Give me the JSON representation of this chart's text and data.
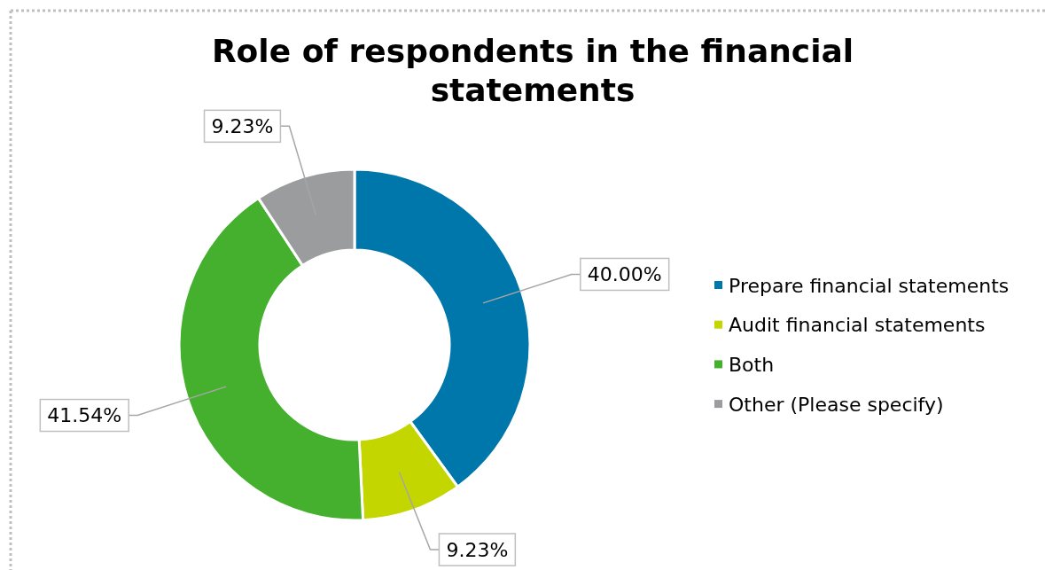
{
  "chart_data": {
    "type": "donut",
    "title": "Role of respondents in the financial statements",
    "categories": [
      "Prepare financial statements",
      "Audit financial statements",
      "Both",
      "Other (Please specify)"
    ],
    "values": [
      40.0,
      9.23,
      41.54,
      9.23
    ],
    "colors": [
      "#0077aa",
      "#c3d600",
      "#45b02d",
      "#9b9c9e"
    ],
    "value_labels": [
      "40.00%",
      "9.23%",
      "41.54%",
      "9.23%"
    ],
    "legend": "right"
  }
}
